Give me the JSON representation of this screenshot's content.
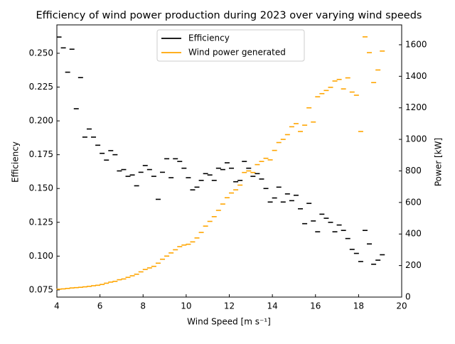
{
  "chart_data": {
    "type": "scatter",
    "title": "Efficiency of wind power production during 2023 over varying wind speeds",
    "xlabel": "Wind Speed [m s⁻¹]",
    "ylabel": "Efficiency",
    "y2label": "Power [kW]",
    "x": [
      4.1,
      4.3,
      4.5,
      4.7,
      4.9,
      5.1,
      5.3,
      5.5,
      5.7,
      5.9,
      6.1,
      6.3,
      6.5,
      6.7,
      6.9,
      7.1,
      7.3,
      7.5,
      7.7,
      7.9,
      8.1,
      8.3,
      8.5,
      8.7,
      8.9,
      9.1,
      9.3,
      9.5,
      9.7,
      9.9,
      10.1,
      10.3,
      10.5,
      10.7,
      10.9,
      11.1,
      11.3,
      11.5,
      11.7,
      11.9,
      12.1,
      12.3,
      12.5,
      12.7,
      12.9,
      13.1,
      13.3,
      13.5,
      13.7,
      13.9,
      14.1,
      14.3,
      14.5,
      14.7,
      14.9,
      15.1,
      15.3,
      15.5,
      15.7,
      15.9,
      16.1,
      16.3,
      16.5,
      16.7,
      16.9,
      17.1,
      17.3,
      17.5,
      17.7,
      17.9,
      18.1,
      18.3,
      18.5,
      18.7,
      18.9,
      19.1
    ],
    "series": [
      {
        "name": "Efficiency",
        "color": "#000000",
        "values": [
          0.262,
          0.254,
          0.236,
          0.253,
          0.209,
          0.232,
          0.188,
          0.194,
          0.188,
          0.182,
          0.176,
          0.171,
          0.178,
          0.175,
          0.163,
          0.164,
          0.159,
          0.16,
          0.152,
          0.162,
          0.167,
          0.164,
          0.159,
          0.142,
          0.162,
          0.172,
          0.158,
          0.172,
          0.17,
          0.165,
          0.158,
          0.149,
          0.151,
          0.156,
          0.161,
          0.16,
          0.156,
          0.165,
          0.164,
          0.169,
          0.165,
          0.155,
          0.156,
          0.17,
          0.165,
          0.159,
          0.161,
          0.157,
          0.15,
          0.14,
          0.143,
          0.151,
          0.14,
          0.146,
          0.141,
          0.145,
          0.135,
          0.124,
          0.139,
          0.126,
          0.118,
          0.131,
          0.128,
          0.125,
          0.118,
          0.123,
          0.119,
          0.113,
          0.105,
          0.102,
          0.096,
          0.119,
          0.109,
          0.094,
          0.097,
          0.101
        ]
      },
      {
        "name": "Wind power generated",
        "color": "#ffa500",
        "axis": "y2",
        "values": [
          50,
          52,
          55,
          58,
          60,
          62,
          65,
          68,
          72,
          75,
          80,
          88,
          95,
          100,
          110,
          115,
          125,
          135,
          145,
          160,
          175,
          185,
          195,
          215,
          240,
          260,
          280,
          300,
          320,
          330,
          335,
          350,
          375,
          410,
          450,
          480,
          510,
          550,
          590,
          630,
          660,
          680,
          710,
          790,
          800,
          790,
          840,
          860,
          880,
          870,
          930,
          980,
          1000,
          1030,
          1080,
          1100,
          1050,
          1090,
          1200,
          1110,
          1270,
          1290,
          1310,
          1330,
          1370,
          1380,
          1320,
          1390,
          1300,
          1280,
          1050,
          1650,
          1550,
          1360,
          1440,
          1560
        ]
      }
    ],
    "xlim": [
      4,
      20
    ],
    "xticks": [
      4,
      6,
      8,
      10,
      12,
      14,
      16,
      18,
      20
    ],
    "ylim": [
      0.0697,
      0.271
    ],
    "yticks": [
      0.075,
      {
        "value": 0.1,
        "label": "0.100"
      },
      0.125,
      {
        "value": 0.15,
        "label": "0.150"
      },
      0.175,
      {
        "value": 0.2,
        "label": "0.200"
      },
      0.225,
      {
        "value": 0.25,
        "label": "0.250"
      }
    ],
    "y2lim": [
      0,
      1726
    ],
    "y2ticks": [
      0,
      200,
      400,
      600,
      800,
      1000,
      1200,
      1400,
      1600
    ],
    "legend": "upper center"
  }
}
